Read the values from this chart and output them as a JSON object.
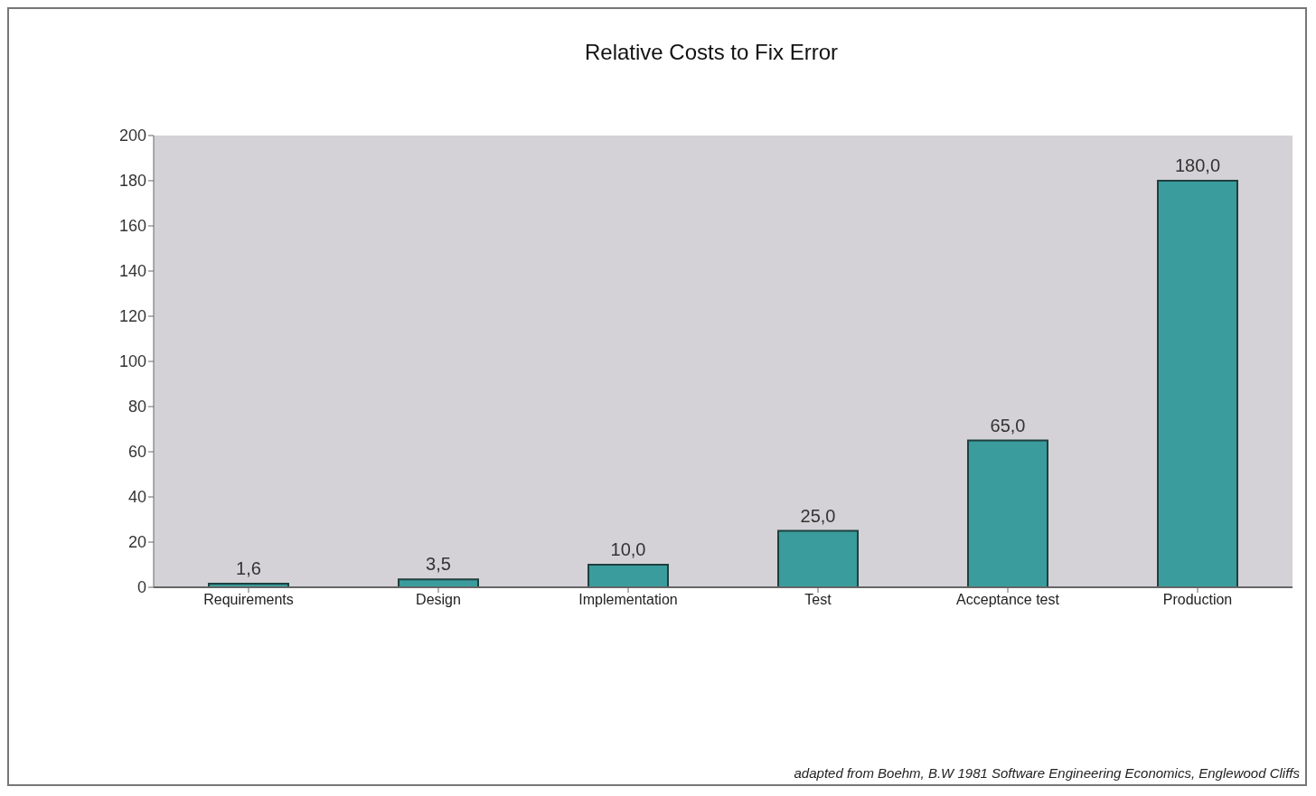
{
  "chart_data": {
    "type": "bar",
    "title": "Relative Costs to Fix Error",
    "categories": [
      "Requirements",
      "Design",
      "Implementation",
      "Test",
      "Acceptance test",
      "Production"
    ],
    "values": [
      1.6,
      3.5,
      10,
      25,
      65,
      180
    ],
    "value_labels": [
      "1,6",
      "3,5",
      "10,0",
      "25,0",
      "65,0",
      "180,0"
    ],
    "color": "#3a9c9c",
    "ylim": [
      0,
      200
    ],
    "yticks": [
      0,
      20,
      40,
      60,
      80,
      100,
      120,
      140,
      160,
      180,
      200
    ],
    "annotations": [
      "adapted from Boehm, B.W 1981 Software Engineering Economics, Englewood Cliffs"
    ]
  }
}
